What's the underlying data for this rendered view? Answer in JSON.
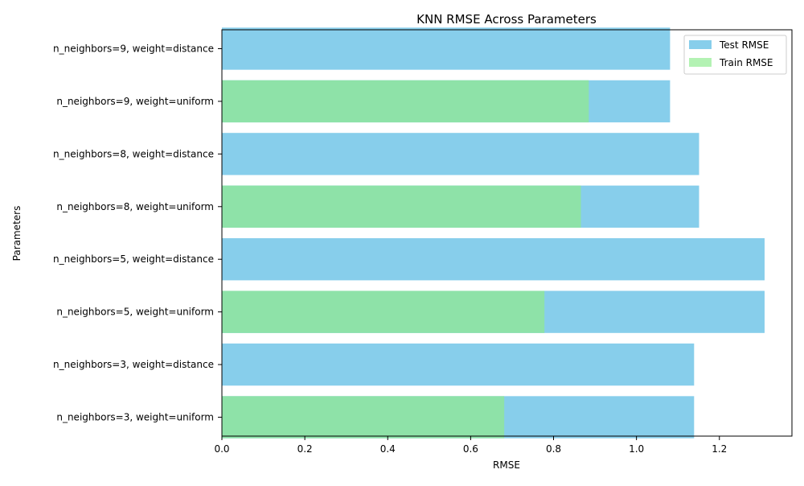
{
  "chart_data": {
    "type": "bar",
    "orientation": "horizontal",
    "title": "KNN RMSE Across Parameters",
    "xlabel": "RMSE",
    "ylabel": "Parameters",
    "xlim": [
      0,
      1.375
    ],
    "xticks": [
      0.0,
      0.2,
      0.4,
      0.6,
      0.8,
      1.0,
      1.2
    ],
    "xtick_labels": [
      "0.0",
      "0.2",
      "0.4",
      "0.6",
      "0.8",
      "1.0",
      "1.2"
    ],
    "grid": false,
    "legend_position": "top-right",
    "categories": [
      "n_neighbors=3, weight=uniform",
      "n_neighbors=3, weight=distance",
      "n_neighbors=5, weight=uniform",
      "n_neighbors=5, weight=distance",
      "n_neighbors=8, weight=uniform",
      "n_neighbors=8, weight=distance",
      "n_neighbors=9, weight=uniform",
      "n_neighbors=9, weight=distance"
    ],
    "series": [
      {
        "name": "Test RMSE",
        "color": "#87CEEB",
        "legend_color": "#87CEEB",
        "values": [
          1.139,
          1.139,
          1.309,
          1.309,
          1.151,
          1.151,
          1.081,
          1.081
        ]
      },
      {
        "name": "Train RMSE",
        "color": "#8EE2A8",
        "legend_color": "#B3F2B3",
        "values": [
          0.681,
          null,
          0.778,
          null,
          0.866,
          null,
          0.885,
          null
        ]
      }
    ]
  }
}
